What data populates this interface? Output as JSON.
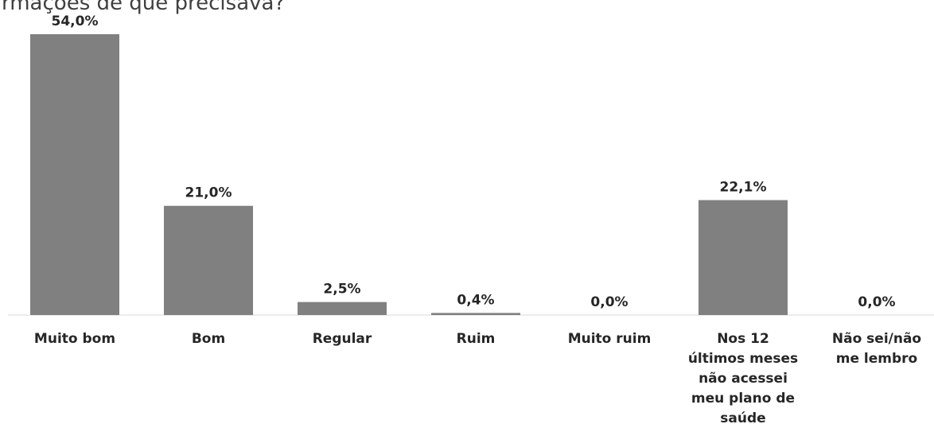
{
  "title": "rmações de que precisava?",
  "chart_data": {
    "type": "bar",
    "categories": [
      "Muito bom",
      "Bom",
      "Regular",
      "Ruim",
      "Muito ruim",
      "Nos 12 últimos meses não acessei meu plano de saúde",
      "Não sei/não me lembro"
    ],
    "category_lines": [
      [
        "Muito bom"
      ],
      [
        "Bom"
      ],
      [
        "Regular"
      ],
      [
        "Ruim"
      ],
      [
        "Muito ruim"
      ],
      [
        "Nos 12",
        "últimos meses",
        "não acessei",
        "meu plano de",
        "saúde"
      ],
      [
        "Não sei/não",
        "me lembro"
      ]
    ],
    "values": [
      54.0,
      21.0,
      2.5,
      0.4,
      0.0,
      22.1,
      0.0
    ],
    "data_labels": [
      "54,0%",
      "21,0%",
      "2,5%",
      "0,4%",
      "0,0%",
      "22,1%",
      "0,0%"
    ],
    "unit": "%",
    "bar_color": "#808080",
    "ylim": [
      0,
      54.0
    ],
    "grid": false,
    "legend": "none"
  }
}
